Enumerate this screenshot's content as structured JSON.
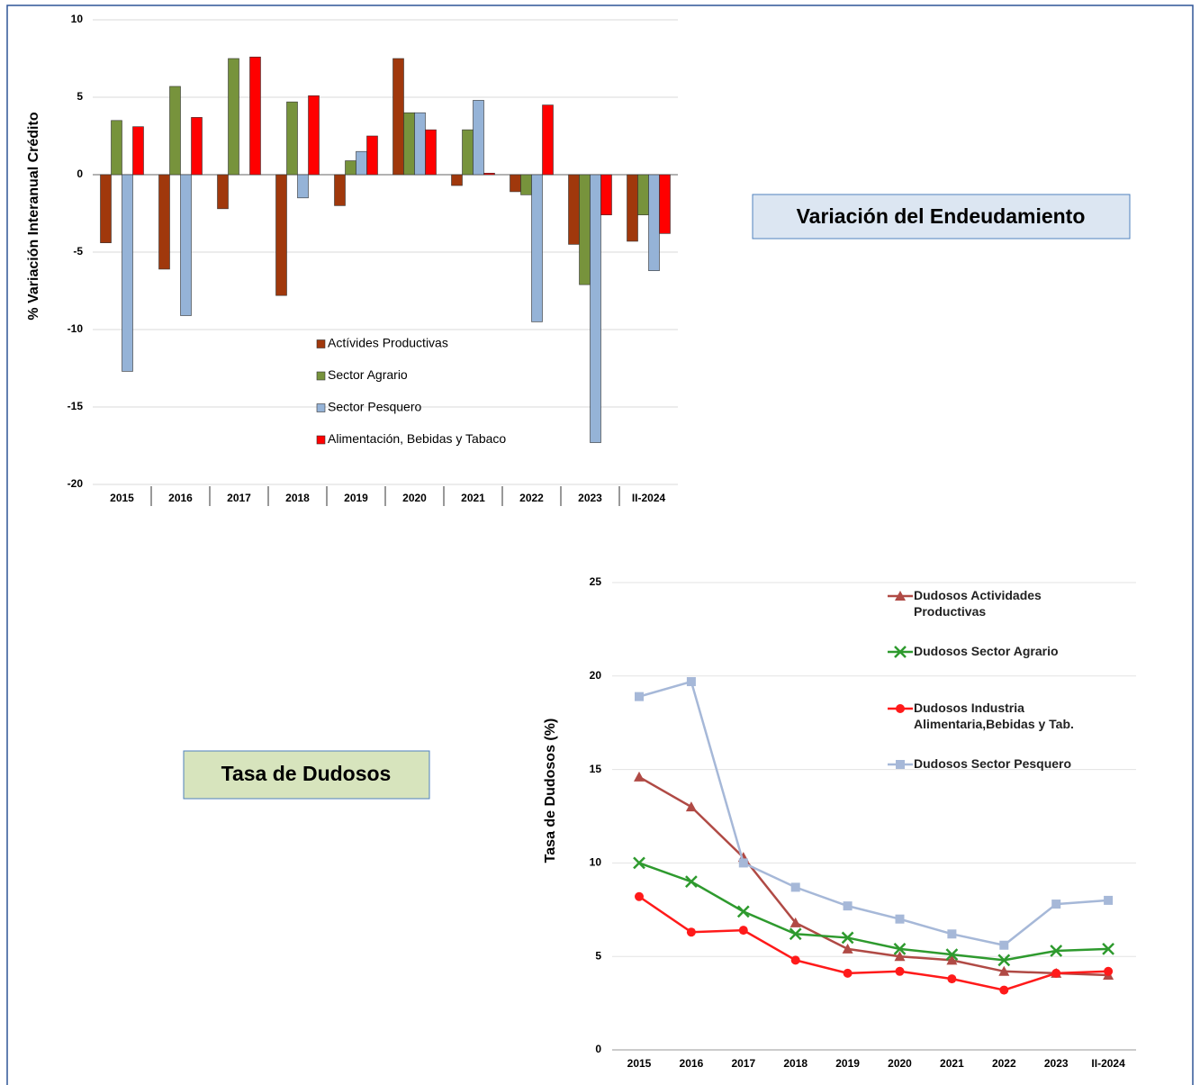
{
  "chart_data": [
    {
      "type": "bar",
      "y_label": "% Variación Interanual Crédito",
      "annotation": "Variación del Endeudamiento",
      "categories": [
        "2015",
        "2016",
        "2017",
        "2018",
        "2019",
        "2020",
        "2021",
        "2022",
        "2023",
        "II-2024"
      ],
      "series": [
        {
          "name": "Actívides Productivas",
          "color": "#a0380c",
          "values": [
            -4.4,
            -6.1,
            -2.2,
            -7.8,
            -2.0,
            7.5,
            -0.7,
            -1.1,
            -4.5,
            -4.3
          ]
        },
        {
          "name": "Sector Agrario",
          "color": "#77933c",
          "values": [
            3.5,
            5.7,
            7.5,
            4.7,
            0.9,
            4.0,
            2.9,
            -1.3,
            -7.1,
            -2.6
          ]
        },
        {
          "name": "Sector Pesquero",
          "color": "#95b3d7",
          "values": [
            -12.7,
            -9.1,
            0,
            -1.5,
            1.5,
            4.0,
            4.8,
            -9.5,
            -17.3,
            -6.2
          ]
        },
        {
          "name": "Alimentación, Bebidas y Tabaco",
          "color": "#ff0000",
          "values": [
            3.1,
            3.7,
            7.6,
            5.1,
            2.5,
            2.9,
            0.1,
            4.5,
            -2.6,
            -3.8
          ]
        }
      ],
      "ylim": [
        -20,
        10
      ],
      "yticks": [
        -20,
        -15,
        -10,
        -5,
        0,
        5,
        10
      ],
      "grid": true
    },
    {
      "type": "line",
      "y_label": "Tasa de Dudosos (%)",
      "annotation": "Tasa de Dudosos",
      "categories": [
        "2015",
        "2016",
        "2017",
        "2018",
        "2019",
        "2020",
        "2021",
        "2022",
        "2023",
        "II-2024"
      ],
      "series": [
        {
          "name": "Dudosos Actividades Productivas",
          "color": "#b04a45",
          "marker": "triangle",
          "values": [
            14.6,
            13.0,
            10.3,
            6.8,
            5.4,
            5.0,
            4.8,
            4.2,
            4.1,
            4.0
          ]
        },
        {
          "name": "Dudosos Sector Agrario",
          "color": "#2e9a2e",
          "marker": "x",
          "values": [
            10.0,
            9.0,
            7.4,
            6.2,
            6.0,
            5.4,
            5.1,
            4.8,
            5.3,
            5.4
          ]
        },
        {
          "name": "Dudosos Industria Alimentaria,Bebidas y Tab.",
          "color": "#ff1a1a",
          "marker": "circle",
          "values": [
            8.2,
            6.3,
            6.4,
            4.8,
            4.1,
            4.2,
            3.8,
            3.2,
            4.1,
            4.2
          ]
        },
        {
          "name": "Dudosos Sector Pesquero",
          "color": "#a6b8d8",
          "marker": "square",
          "values": [
            18.9,
            19.7,
            10.0,
            8.7,
            7.7,
            7.0,
            6.2,
            5.6,
            7.8,
            8.0
          ]
        }
      ],
      "ylim": [
        0,
        25
      ],
      "yticks": [
        0,
        5,
        10,
        15,
        20,
        25
      ],
      "grid": true
    }
  ]
}
